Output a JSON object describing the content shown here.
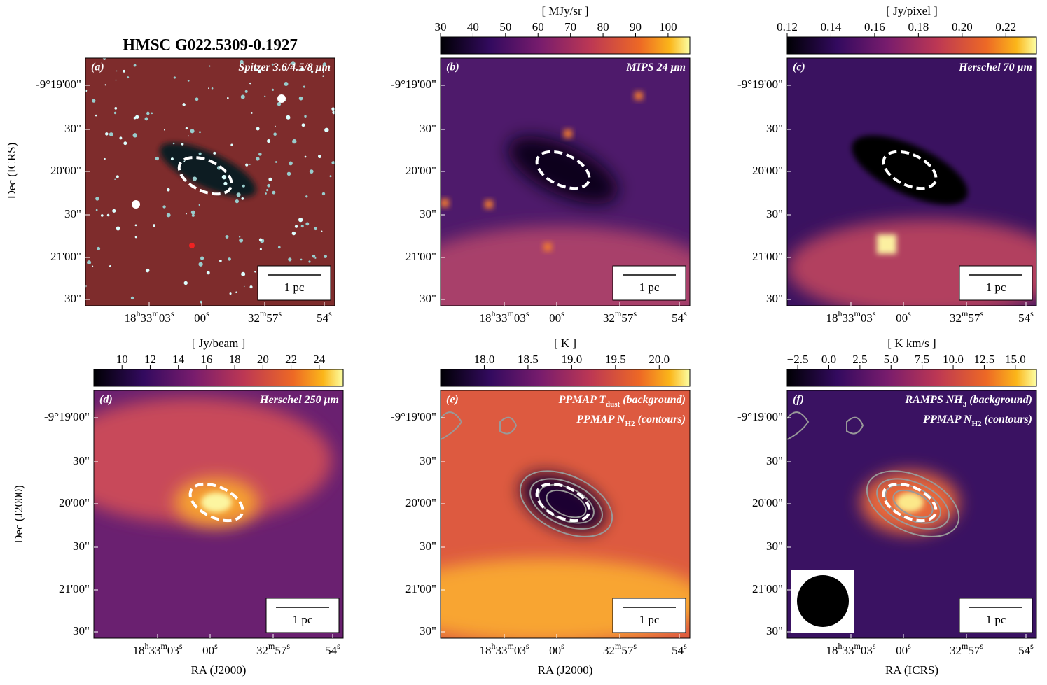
{
  "title": "HMSC G022.5309-0.1927",
  "axes": {
    "dec_ticks": [
      "-9°19'00\"",
      "30\"",
      "20'00\"",
      "30\"",
      "21'00\"",
      "30\""
    ],
    "ra_ticks": [
      [
        "18",
        "h",
        "33",
        "m",
        "03",
        "s"
      ],
      [
        "00",
        "s"
      ],
      [
        "32",
        "m",
        "57",
        "s"
      ],
      [
        "54",
        "s"
      ]
    ],
    "scale_bar": "1 pc"
  },
  "panels": [
    {
      "label": "(a)",
      "caption": [
        [
          "Spitzer 3.6/4.5/8 μm"
        ]
      ],
      "ylabel": "Dec (ICRS)"
    },
    {
      "label": "(b)",
      "caption": [
        [
          "MIPS 24 μm"
        ]
      ],
      "colorbar": {
        "label": "[ MJy/sr ]",
        "lim": [
          30,
          106.7
        ],
        "ticks": [
          30,
          40,
          50,
          60,
          70,
          80,
          90,
          100
        ]
      }
    },
    {
      "label": "(c)",
      "caption": [
        [
          "Herschel 70 μm"
        ]
      ],
      "colorbar": {
        "label": "[ Jy/pixel ]",
        "lim": [
          0.12,
          0.234
        ],
        "ticks": [
          0.12,
          0.14,
          0.16,
          0.18,
          {
            "value": 0.2,
            "label": "0.20"
          },
          0.22
        ]
      }
    },
    {
      "label": "(d)",
      "caption": [
        [
          "Herschel 250 μm"
        ]
      ],
      "ylabel": "Dec (J2000)",
      "xlabel": "RA (J2000)",
      "colorbar": {
        "label": "[ Jy/beam ]",
        "lim": [
          8.0,
          25.7
        ],
        "ticks": [
          10,
          12,
          14,
          16,
          18,
          20,
          22,
          24
        ]
      }
    },
    {
      "label": "(e)",
      "caption": [
        [
          "PPMAP T",
          {
            "sub": "dust"
          },
          " (background)"
        ],
        [
          "PPMAP N",
          {
            "sub": "H2"
          },
          " (contours)"
        ]
      ],
      "xlabel": "RA (J2000)",
      "colorbar": {
        "label": "[ K ]",
        "lim": [
          17.5,
          20.35
        ],
        "ticks": [
          {
            "value": 18,
            "label": "18.0"
          },
          18.5,
          {
            "value": 19,
            "label": "19.0"
          },
          19.5,
          {
            "value": 20,
            "label": "20.0"
          }
        ]
      }
    },
    {
      "label": "(f)",
      "caption": [
        [
          "RAMPS NH",
          {
            "sub": "3"
          },
          " (background)"
        ],
        [
          "PPMAP N",
          {
            "sub": "H2"
          },
          " (contours)"
        ]
      ],
      "xlabel": "RA (ICRS)",
      "colorbar": {
        "label": "[ K km/s ]",
        "lim": [
          -3.35,
          16.7
        ],
        "ticks": [
          {
            "value": -2.5,
            "label": "−2.5"
          },
          {
            "value": 0,
            "label": "0.0"
          },
          2.5,
          {
            "value": 5,
            "label": "5.0"
          },
          7.5,
          {
            "value": 10,
            "label": "10.0"
          },
          12.5,
          {
            "value": 15,
            "label": "15.0"
          }
        ]
      }
    }
  ]
}
